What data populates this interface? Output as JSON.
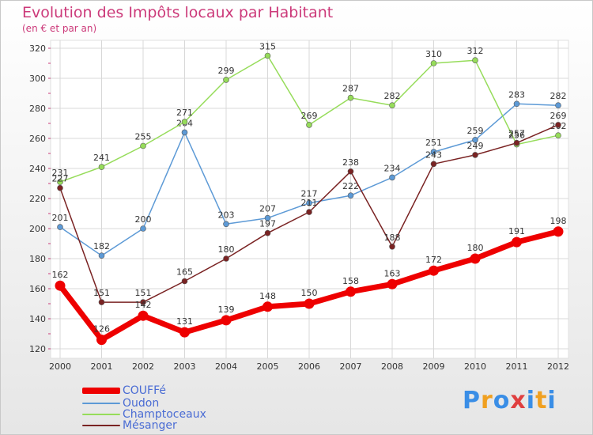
{
  "chart_data": {
    "type": "line",
    "title": "Evolution des Impôts locaux par Habitant",
    "subtitle": "(en € et par an)",
    "categories": [
      "2000",
      "2001",
      "2002",
      "2003",
      "2004",
      "2005",
      "2006",
      "2007",
      "2008",
      "2009",
      "2010",
      "2011",
      "2012"
    ],
    "ylim": [
      120,
      320
    ],
    "yticks": [
      120,
      140,
      160,
      180,
      200,
      220,
      240,
      260,
      280,
      300,
      320
    ],
    "grid": true,
    "legend_position": "bottom-left",
    "series": [
      {
        "name": "COUFFé",
        "color": "#ee0000",
        "emphasis": true,
        "values": [
          162,
          126,
          142,
          131,
          139,
          148,
          150,
          158,
          163,
          172,
          180,
          191,
          198
        ]
      },
      {
        "name": "Oudon",
        "color": "#5d9ad6",
        "emphasis": false,
        "values": [
          201,
          182,
          200,
          264,
          203,
          207,
          217,
          222,
          234,
          251,
          259,
          283,
          282
        ]
      },
      {
        "name": "Champtoceaux",
        "color": "#96dc5a",
        "emphasis": false,
        "values": [
          231,
          241,
          255,
          271,
          299,
          315,
          269,
          287,
          282,
          310,
          312,
          256,
          262
        ]
      },
      {
        "name": "Mésanger",
        "color": "#7a2323",
        "emphasis": false,
        "values": [
          227,
          151,
          151,
          165,
          180,
          197,
          211,
          238,
          188,
          243,
          249,
          257,
          269
        ]
      }
    ]
  },
  "logo": {
    "letters": [
      "P",
      "r",
      "o",
      "x",
      "i",
      "t",
      "i"
    ],
    "colors": [
      "#3a8ee6",
      "#f0a020",
      "#3a8ee6",
      "#e04040",
      "#3a8ee6",
      "#f0a020",
      "#3a8ee6"
    ]
  }
}
